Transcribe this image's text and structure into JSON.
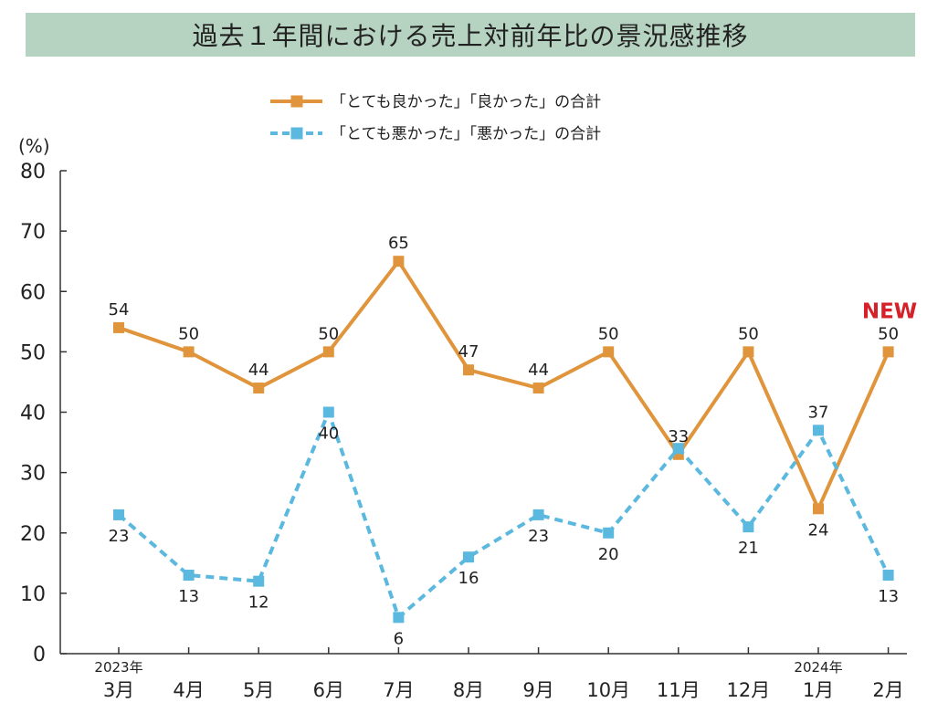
{
  "title": "過去１年間における売上対前年比の景況感推移",
  "chart_data": {
    "type": "line",
    "y_unit": "(%)",
    "ylim": [
      0,
      80
    ],
    "yticks": [
      0,
      10,
      20,
      30,
      40,
      50,
      60,
      70,
      80
    ],
    "categories": [
      "3月",
      "4月",
      "5月",
      "6月",
      "7月",
      "8月",
      "9月",
      "10月",
      "11月",
      "12月",
      "1月",
      "2月"
    ],
    "year_labels": [
      {
        "index": 0,
        "text": "2023年"
      },
      {
        "index": 10,
        "text": "2024年"
      }
    ],
    "legend_position": "top-center",
    "grid": false,
    "series": [
      {
        "name": "「とても良かった」「良かった」の合計",
        "color": "#e0953c",
        "line_style": "solid",
        "marker": "square",
        "values": [
          54,
          50,
          44,
          50,
          65,
          47,
          44,
          50,
          33,
          50,
          24,
          50
        ],
        "labels": [
          "54",
          "50",
          "44",
          "50",
          "65",
          "47",
          "44",
          "50",
          "33",
          "50",
          "24",
          "50"
        ],
        "label_pos": [
          "above",
          "above",
          "above",
          "above",
          "above",
          "above",
          "above",
          "above",
          "above",
          "above",
          "below",
          "above"
        ]
      },
      {
        "name": "「とても悪かった」「悪かった」の合計",
        "color": "#5bb8de",
        "line_style": "dashed",
        "marker": "square",
        "values": [
          23,
          13,
          12,
          40,
          6,
          16,
          23,
          20,
          34,
          21,
          37,
          13
        ],
        "labels": [
          "23",
          "13",
          "12",
          "40",
          "6",
          "16",
          "23",
          "20",
          "",
          "21",
          "37",
          "13"
        ],
        "label_pos": [
          "below",
          "below",
          "below",
          "below",
          "below",
          "below",
          "below",
          "below",
          "none",
          "below",
          "above",
          "below"
        ]
      }
    ],
    "annotations": [
      {
        "text": "NEW",
        "index": 11,
        "color": "#d6202a"
      }
    ]
  }
}
